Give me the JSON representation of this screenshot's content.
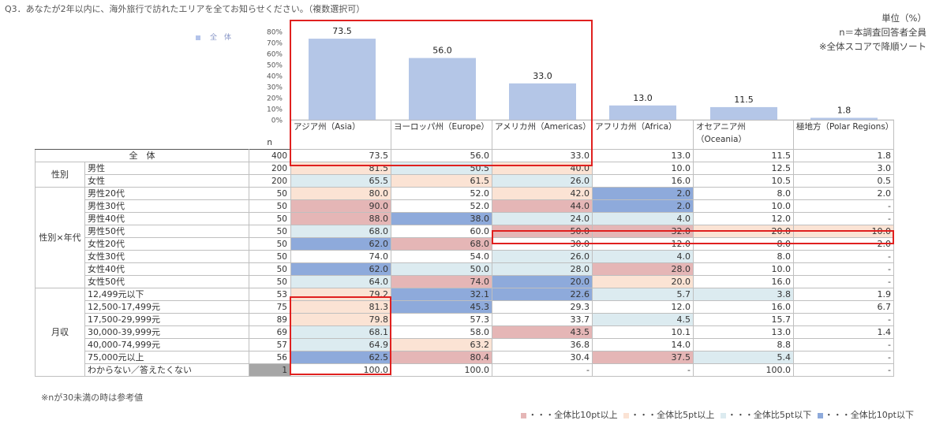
{
  "question": "Q3．あなたが2年以内に、海外旅行で訪れたエリアを全てお知らせください。（複数選択可）",
  "notes": [
    "単位（%）",
    "n＝本調査回答者全員",
    "※全体スコアで降順ソート"
  ],
  "legend_top_label": "全　体",
  "n_header": "n",
  "chart_data": {
    "type": "bar",
    "categories": [
      "アジア州（Asia）",
      "ヨーロッパ州（Europe）",
      "アメリカ州（Americas）",
      "アフリカ州（Africa）",
      "オセアニア州（Oceania）",
      "極地方（Polar Regions）"
    ],
    "series": [
      {
        "name": "全　体",
        "values": [
          73.5,
          56.0,
          33.0,
          13.0,
          11.5,
          1.8
        ]
      }
    ],
    "value_labels": [
      "73.5",
      "56.0",
      "33.0",
      "13.0",
      "11.5",
      "1.8"
    ],
    "ylim": [
      0,
      80
    ],
    "yticks": [
      "0%",
      "10%",
      "20%",
      "30%",
      "40%",
      "50%",
      "60%",
      "70%",
      "80%"
    ],
    "bar_color": "#b4c6e7"
  },
  "columns": [
    "アジア州（Asia）",
    "ヨーロッパ州（Europe）",
    "アメリカ州（Americas）",
    "アフリカ州（Africa）",
    "オセアニア州（Oceania）",
    "極地方（Polar Regions）"
  ],
  "rows": [
    {
      "group": "全　体",
      "label": "",
      "n": "400",
      "values": [
        "73.5",
        "56.0",
        "33.0",
        "13.0",
        "11.5",
        "1.8"
      ],
      "hl": [
        "",
        "",
        "",
        "",
        "",
        ""
      ]
    },
    {
      "group": "性別",
      "label": "男性",
      "n": "200",
      "values": [
        "81.5",
        "50.5",
        "40.0",
        "10.0",
        "12.5",
        "3.0"
      ],
      "hl": [
        "hi5",
        "lo5",
        "hi5",
        "",
        "",
        ""
      ]
    },
    {
      "group": "",
      "label": "女性",
      "n": "200",
      "values": [
        "65.5",
        "61.5",
        "26.0",
        "16.0",
        "10.5",
        "0.5"
      ],
      "hl": [
        "lo5",
        "hi5",
        "lo5",
        "",
        "",
        ""
      ]
    },
    {
      "group": "性別×年代",
      "label": "男性20代",
      "n": "50",
      "values": [
        "80.0",
        "52.0",
        "42.0",
        "2.0",
        "8.0",
        "2.0"
      ],
      "hl": [
        "hi5",
        "",
        "hi5",
        "lo10",
        "",
        ""
      ]
    },
    {
      "group": "",
      "label": "男性30代",
      "n": "50",
      "values": [
        "90.0",
        "52.0",
        "44.0",
        "2.0",
        "10.0",
        "-"
      ],
      "hl": [
        "hi10",
        "",
        "hi10",
        "lo10",
        "",
        ""
      ]
    },
    {
      "group": "",
      "label": "男性40代",
      "n": "50",
      "values": [
        "88.0",
        "38.0",
        "24.0",
        "4.0",
        "12.0",
        "-"
      ],
      "hl": [
        "hi10",
        "lo10",
        "lo5",
        "lo5",
        "",
        ""
      ]
    },
    {
      "group": "",
      "label": "男性50代",
      "n": "50",
      "values": [
        "68.0",
        "60.0",
        "50.0",
        "32.0",
        "20.0",
        "10.0"
      ],
      "hl": [
        "lo5",
        "",
        "hi10",
        "hi10",
        "hi5",
        "hi5"
      ]
    },
    {
      "group": "",
      "label": "女性20代",
      "n": "50",
      "values": [
        "62.0",
        "68.0",
        "30.0",
        "12.0",
        "8.0",
        "2.0"
      ],
      "hl": [
        "lo10",
        "hi10",
        "",
        "",
        "",
        ""
      ]
    },
    {
      "group": "",
      "label": "女性30代",
      "n": "50",
      "values": [
        "74.0",
        "54.0",
        "26.0",
        "4.0",
        "8.0",
        "-"
      ],
      "hl": [
        "",
        "",
        "lo5",
        "lo5",
        "",
        ""
      ]
    },
    {
      "group": "",
      "label": "女性40代",
      "n": "50",
      "values": [
        "62.0",
        "50.0",
        "28.0",
        "28.0",
        "10.0",
        "-"
      ],
      "hl": [
        "lo10",
        "lo5",
        "lo5",
        "hi10",
        "",
        ""
      ]
    },
    {
      "group": "",
      "label": "女性50代",
      "n": "50",
      "values": [
        "64.0",
        "74.0",
        "20.0",
        "20.0",
        "16.0",
        "-"
      ],
      "hl": [
        "lo5",
        "hi10",
        "lo10",
        "hi5",
        "",
        ""
      ]
    },
    {
      "group": "月収",
      "label": "12,499元以下",
      "n": "53",
      "values": [
        "79.2",
        "32.1",
        "22.6",
        "5.7",
        "3.8",
        "1.9"
      ],
      "hl": [
        "hi5",
        "lo10",
        "lo10",
        "lo5",
        "lo5",
        ""
      ]
    },
    {
      "group": "",
      "label": "12,500-17,499元",
      "n": "75",
      "values": [
        "81.3",
        "45.3",
        "29.3",
        "12.0",
        "16.0",
        "6.7"
      ],
      "hl": [
        "hi5",
        "lo10",
        "",
        "",
        "",
        ""
      ]
    },
    {
      "group": "",
      "label": "17,500-29,999元",
      "n": "89",
      "values": [
        "79.8",
        "57.3",
        "33.7",
        "4.5",
        "15.7",
        "-"
      ],
      "hl": [
        "hi5",
        "",
        "",
        "lo5",
        "",
        ""
      ]
    },
    {
      "group": "",
      "label": "30,000-39,999元",
      "n": "69",
      "values": [
        "68.1",
        "58.0",
        "43.5",
        "10.1",
        "13.0",
        "1.4"
      ],
      "hl": [
        "lo5",
        "",
        "hi10",
        "",
        "",
        ""
      ]
    },
    {
      "group": "",
      "label": "40,000-74,999元",
      "n": "57",
      "values": [
        "64.9",
        "63.2",
        "36.8",
        "14.0",
        "8.8",
        "-"
      ],
      "hl": [
        "lo5",
        "hi5",
        "",
        "",
        "",
        ""
      ]
    },
    {
      "group": "",
      "label": "75,000元以上",
      "n": "56",
      "values": [
        "62.5",
        "80.4",
        "30.4",
        "37.5",
        "5.4",
        "-"
      ],
      "hl": [
        "lo10",
        "hi10",
        "",
        "hi10",
        "lo5",
        ""
      ]
    },
    {
      "group": "",
      "label": "わからない／答えたくない",
      "n": "1",
      "values": [
        "100.0",
        "100.0",
        "-",
        "-",
        "100.0",
        "-"
      ],
      "hl": [
        "",
        "",
        "",
        "",
        "",
        ""
      ]
    }
  ],
  "footnote": "※nが30未満の時は参考値",
  "legend_bottom": [
    {
      "text": "・・・全体比10pt以上",
      "color": "#e5b6b6"
    },
    {
      "text": "・・・全体比5pt以上",
      "color": "#fbe3d4"
    },
    {
      "text": "・・・全体比5pt以下",
      "color": "#dcebf0"
    },
    {
      "text": "・・・全体比10pt以下",
      "color": "#8eaadb"
    }
  ]
}
